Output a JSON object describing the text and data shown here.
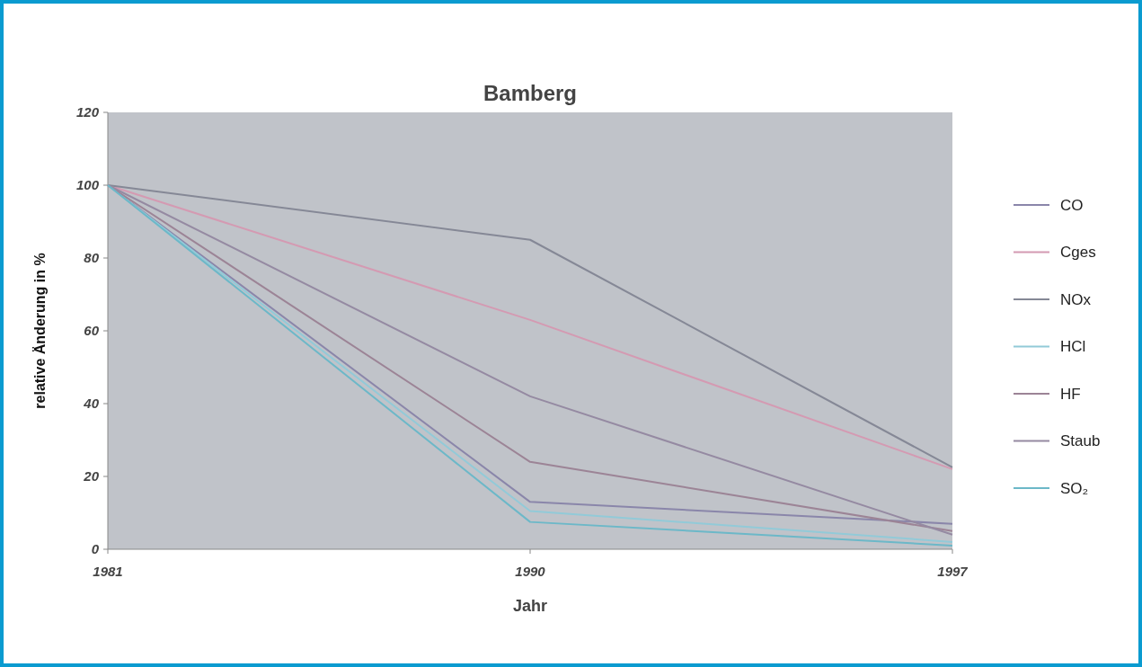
{
  "chart_data": {
    "type": "line",
    "title": "Bamberg",
    "xlabel": "Jahr",
    "ylabel": "relative Änderung in %",
    "categories": [
      "1981",
      "1990",
      "1997"
    ],
    "series": [
      {
        "name": "CO",
        "color": "#8a86aa",
        "values": [
          100,
          13,
          7
        ]
      },
      {
        "name": "Cges",
        "color": "#d49ab2",
        "values": [
          100,
          63,
          22
        ]
      },
      {
        "name": "NOx",
        "color": "#858896",
        "values": [
          100,
          85,
          22.5
        ]
      },
      {
        "name": "HCl",
        "color": "#92cad8",
        "values": [
          100,
          10.5,
          2
        ]
      },
      {
        "name": "HF",
        "color": "#9c8496",
        "values": [
          100,
          24,
          5
        ]
      },
      {
        "name": "Staub",
        "color": "#958aa2",
        "values": [
          100,
          42,
          4
        ]
      },
      {
        "name": "SO₂",
        "color": "#6cb8c8",
        "values": [
          100,
          7.5,
          1
        ]
      }
    ],
    "ylim": [
      0,
      120
    ],
    "yticks": [
      0,
      20,
      40,
      60,
      80,
      100,
      120
    ],
    "grid": false,
    "legend": "right",
    "marker": "none",
    "line_style": "solid"
  }
}
